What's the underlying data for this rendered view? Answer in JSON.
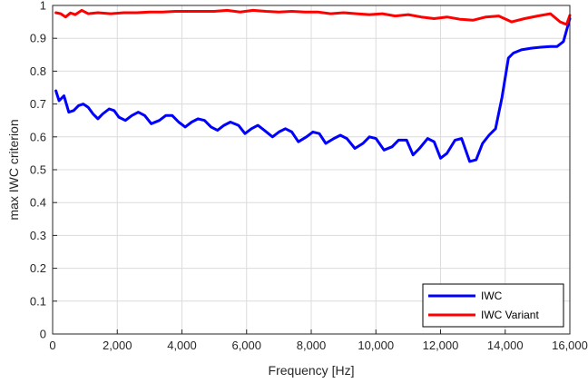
{
  "chart_data": {
    "type": "line",
    "title": "",
    "xlabel": "Frequency [Hz]",
    "ylabel": "max IWC criterion",
    "xlim": [
      0,
      16000
    ],
    "ylim": [
      0,
      1
    ],
    "grid": true,
    "legend_position": "bottom-right",
    "x_ticks": [
      0,
      2000,
      4000,
      6000,
      8000,
      10000,
      12000,
      14000,
      16000
    ],
    "x_tick_labels": [
      "0",
      "2,000",
      "4,000",
      "6,000",
      "8,000",
      "10,000",
      "12,000",
      "14,000",
      "16,000"
    ],
    "y_ticks": [
      0,
      0.1,
      0.2,
      0.3,
      0.4,
      0.5,
      0.6,
      0.7,
      0.8,
      0.9,
      1
    ],
    "y_tick_labels": [
      "0",
      "0.1",
      "0.2",
      "0.3",
      "0.4",
      "0.5",
      "0.6",
      "0.7",
      "0.8",
      "0.9",
      "1"
    ],
    "series": [
      {
        "name": "IWC",
        "color": "#0000ff",
        "x": [
          100,
          200,
          350,
          500,
          650,
          800,
          950,
          1100,
          1250,
          1400,
          1550,
          1750,
          1900,
          2050,
          2250,
          2450,
          2650,
          2850,
          3050,
          3300,
          3500,
          3700,
          3900,
          4100,
          4300,
          4500,
          4700,
          4900,
          5100,
          5300,
          5500,
          5750,
          5950,
          6150,
          6350,
          6550,
          6800,
          7000,
          7200,
          7400,
          7600,
          7850,
          8050,
          8250,
          8450,
          8700,
          8900,
          9100,
          9350,
          9600,
          9800,
          10000,
          10250,
          10500,
          10700,
          10950,
          11150,
          11350,
          11600,
          11800,
          12000,
          12200,
          12450,
          12650,
          12900,
          13100,
          13300,
          13500,
          13700,
          13900,
          14100,
          14250,
          14500,
          14800,
          15100,
          15400,
          15600,
          15800,
          16000
        ],
        "values": [
          0.74,
          0.71,
          0.725,
          0.675,
          0.68,
          0.695,
          0.7,
          0.69,
          0.67,
          0.655,
          0.67,
          0.685,
          0.68,
          0.66,
          0.65,
          0.665,
          0.675,
          0.665,
          0.64,
          0.65,
          0.665,
          0.665,
          0.645,
          0.63,
          0.645,
          0.655,
          0.65,
          0.63,
          0.62,
          0.635,
          0.645,
          0.635,
          0.61,
          0.625,
          0.635,
          0.62,
          0.6,
          0.615,
          0.625,
          0.615,
          0.585,
          0.6,
          0.615,
          0.61,
          0.58,
          0.595,
          0.605,
          0.595,
          0.565,
          0.58,
          0.6,
          0.595,
          0.56,
          0.57,
          0.59,
          0.59,
          0.545,
          0.565,
          0.595,
          0.585,
          0.535,
          0.55,
          0.59,
          0.595,
          0.525,
          0.53,
          0.58,
          0.605,
          0.625,
          0.72,
          0.84,
          0.855,
          0.865,
          0.87,
          0.873,
          0.875,
          0.875,
          0.89,
          0.96
        ]
      },
      {
        "name": "IWC Variant",
        "color": "#ff0000",
        "x": [
          100,
          250,
          400,
          550,
          700,
          900,
          1100,
          1400,
          1800,
          2200,
          2600,
          3000,
          3400,
          3800,
          4200,
          4600,
          5000,
          5400,
          5800,
          6200,
          6600,
          7000,
          7400,
          7800,
          8200,
          8600,
          9000,
          9400,
          9800,
          10200,
          10600,
          11000,
          11400,
          11800,
          12200,
          12600,
          13000,
          13400,
          13800,
          14200,
          14600,
          15000,
          15400,
          15700,
          15900,
          16000
        ],
        "values": [
          0.978,
          0.975,
          0.965,
          0.977,
          0.972,
          0.985,
          0.975,
          0.978,
          0.975,
          0.978,
          0.978,
          0.98,
          0.98,
          0.982,
          0.982,
          0.982,
          0.982,
          0.985,
          0.98,
          0.985,
          0.982,
          0.98,
          0.982,
          0.98,
          0.98,
          0.975,
          0.978,
          0.975,
          0.972,
          0.975,
          0.968,
          0.972,
          0.965,
          0.96,
          0.965,
          0.958,
          0.955,
          0.965,
          0.968,
          0.95,
          0.96,
          0.968,
          0.975,
          0.95,
          0.942,
          0.97
        ]
      }
    ]
  }
}
